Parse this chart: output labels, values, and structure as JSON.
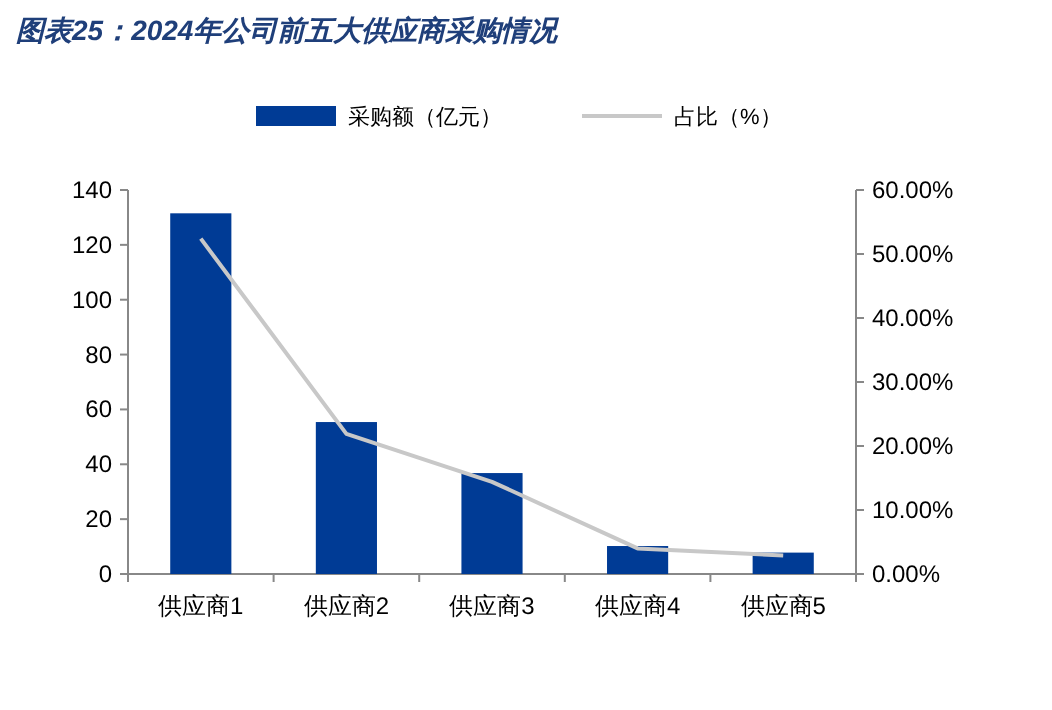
{
  "chart_data": {
    "type": "bar",
    "title": "图表25：2024年公司前五大供应商采购情况",
    "categories": [
      "供应商1",
      "供应商2",
      "供应商3",
      "供应商4",
      "供应商5"
    ],
    "series": [
      {
        "name": "采购额（亿元）",
        "color": "#003b95",
        "values": [
          131.5,
          55.4,
          36.8,
          10.2,
          7.8
        ]
      },
      {
        "name": "占比（%）",
        "type": "line",
        "axis": "y2",
        "color": "#c8c8c8",
        "values": [
          52.4,
          21.9,
          14.4,
          4.0,
          2.9
        ]
      }
    ],
    "ylim": [
      0,
      140
    ],
    "yticks": [
      0,
      20,
      40,
      60,
      80,
      100,
      120,
      140
    ],
    "y2lim": [
      0,
      60
    ],
    "y2ticks": [
      {
        "value": 0,
        "label": "0.00%"
      },
      {
        "value": 10,
        "label": "10.00%"
      },
      {
        "value": 20,
        "label": "20.00%"
      },
      {
        "value": 30,
        "label": "30.00%"
      },
      {
        "value": 40,
        "label": "40.00%"
      },
      {
        "value": 50,
        "label": "50.00%"
      },
      {
        "value": 60,
        "label": "60.00%"
      }
    ],
    "legend": "top",
    "grid": false,
    "marker": "none"
  }
}
